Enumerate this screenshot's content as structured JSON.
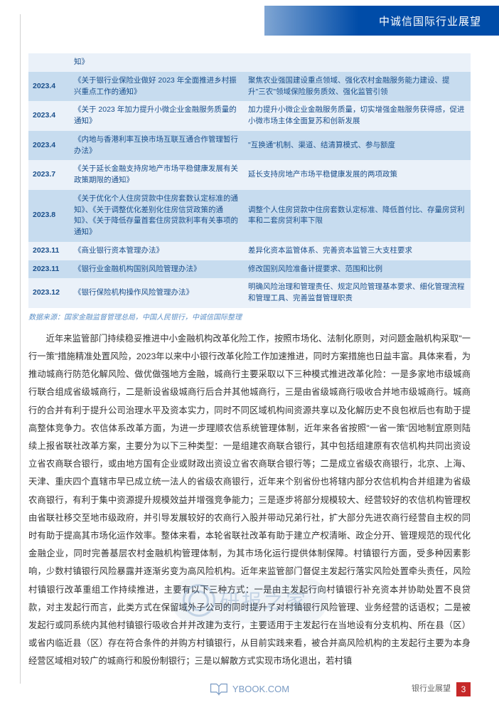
{
  "header": {
    "banner": "中诚信国际行业展望"
  },
  "table": {
    "rows": [
      {
        "band": "light",
        "date": "",
        "title": "知》",
        "desc": ""
      },
      {
        "band": "dark",
        "date": "2023.4",
        "title": "《关于银行业保险业做好 2023 年全面推进乡村振兴重点工作的通知》",
        "desc": "聚焦农业强国建设重点领域、强化农村金融服务能力建设、提升\"三农\"领域保险服务质效、强化监管引领"
      },
      {
        "band": "light",
        "date": "2023.4",
        "title": "《关于 2023 年加力提升小微企业金融服务质量的通知》",
        "desc": "加力提升小微企业金融服务质量，切实增强金融服务获得感，促进小微市场主体全面复苏和创新发展"
      },
      {
        "band": "dark",
        "date": "2023.4",
        "title": "《内地与香港利率互换市场互联互通合作管理暂行办法》",
        "desc": "\"互换通\"机制、渠道、结清算模式、参与额度"
      },
      {
        "band": "light",
        "date": "2023.7",
        "title": "《关于延长金融支持房地产市场平稳健康发展有关政策期限的通知》",
        "desc": "延长支持房地产市场平稳健康发展的两项政策"
      },
      {
        "band": "dark",
        "date": "2023.8",
        "title": "《关于优化个人住房贷款中住房套数认定标准的通知》、《关于调整优化差别化住房信贷政策的通知》、《关于降低存量首套住房贷款利率有关事项的通知》",
        "desc": "调整个人住房贷款中住房套数认定标准、降低首付比、存量房贷利率和二套房贷利率下限"
      },
      {
        "band": "light",
        "date": "2023.11",
        "title": "《商业银行资本管理办法》",
        "desc": "差异化资本监管体系、完善资本监管三大支柱要求"
      },
      {
        "band": "dark",
        "date": "2023.11",
        "title": "《银行业金融机构国别风险管理办法》",
        "desc": "修改国别风险准备计提要求、范围和比例"
      },
      {
        "band": "light",
        "date": "2023.12",
        "title": "《银行保险机构操作风险管理办法》",
        "desc": "明确风险治理和管理责任、规定风险管理基本要求、细化管理流程和管理工具、完善监督管理职责"
      }
    ]
  },
  "source": "数据来源：国家金融监督管理总局，中国人民银行，中诚信国际整理",
  "body": "近年来监管部门持续稳妥推进中小金融机构改革化险工作，按照市场化、法制化原则，对问题金融机构采取\"一行一策\"措施精准处置风险，2023年以来中小银行改革化险工作加速推进，同时方案措施也日益丰富。具体来看，为推动城商行防范化解风险、做优做强地方金融，城商行主要采取以下三种模式推进改革化险：一是多家地市级城商行联合组成省级城商行，二是新设省级城商行后合并其他城商行，三是由省级城商行吸收合并地市级城商行。城商行的合并有利于提升公司治理水平及资本实力，同时不同区域机构间资源共享以及化解历史不良包袱后也有助于提高整体竞争力。农信体系改革方面，为进一步理顺农信系统管理体制，近年来各省按照\"一省一策\"因地制宜原则陆续上报省联社改革方案，主要分为以下三种类型：一是组建农商联合银行，其中包括组建原有农信机构共同出资设立省农商联合银行，或由地方国有企业或财政出资设立省农商联合银行等；二是成立省级农商银行，北京、上海、天津、重庆四个直辖市早已成立统一法人的省级农商银行，近年来个别省份也将辖内部分农信机构合并组建为省级农商银行，有利于集中资源提升规模效益并增强竞争能力；三是逐步将部分规模较大、经营较好的农信机构管理权由省联社移交至地市级政府，并引导发展较好的农商行入股并带动兄弟行社，扩大部分先进农商行经营自主权的同时有助于提高其市场化运作效率。整体来看，本轮省联社改革有助于建立产权清晰、政企分开、管理规范的现代化金融企业，同时完善基层农村金融机构管理体制，为其市场化运行提供体制保障。村镇银行方面，受多种因素影响，少数村镇银行风险暴露并逐渐劣变为高风险机构。近年来监管部门督促主发起行落实风险处置牵头责任，风险村镇银行改革重组工作持续推进，主要有以下三种方式：一是由主发起行向村镇银行补充资本并协助处置不良贷款，对主发起行而言，此类方式在保留域外子公司的同时提升了对村镇银行风险管理、业务经营的话语权；二是被发起行或同系统内其他村镇银行吸收合并并改建为支行，主要适用于主发起行在当地设有分支机构、所在县（区）或省内临近县（区）存在符合条件的并购方村镇银行，从目前实践来看，被合并高风险机构的主发起行主要为本身经营区域相对较广的城商行和股份制银行；三是以解散方式实现市场化退出，若村镇",
  "watermark": "研报之家",
  "ybook": "YBOOK.COM",
  "footer": {
    "label": "银行业展望",
    "page": "3"
  }
}
